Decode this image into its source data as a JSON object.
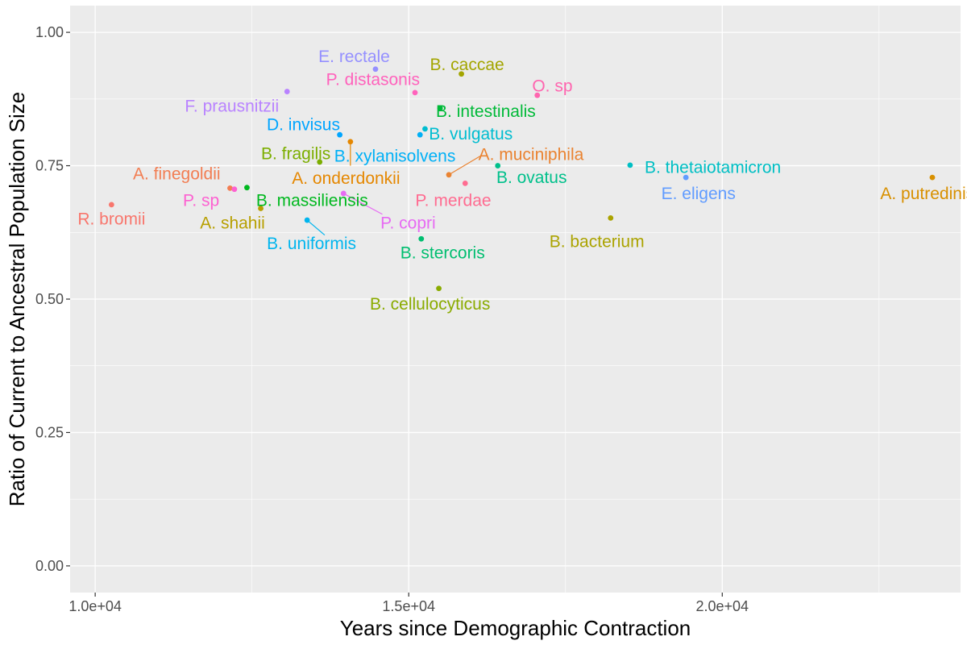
{
  "chart_data": {
    "type": "scatter",
    "title": "",
    "xlabel": "Years since Demographic Contraction",
    "ylabel": "Ratio of Current to Ancestral Population Size",
    "xlim": [
      9600,
      23800
    ],
    "ylim": [
      -0.05,
      1.05
    ],
    "x_ticks": [
      10000,
      15000,
      20000
    ],
    "x_tick_labels": [
      "1.0e+04",
      "1.5e+04",
      "2.0e+04"
    ],
    "y_ticks": [
      0,
      0.25,
      0.5,
      0.75,
      1.0
    ],
    "y_tick_labels": [
      "0.00",
      "0.25",
      "0.50",
      "0.75",
      "1.00"
    ],
    "grid": true,
    "legend": "none",
    "background": "#ebebeb",
    "points": [
      {
        "label": "R. bromii",
        "x": 10260,
        "y": 0.677,
        "color": "#F8766D"
      },
      {
        "label": "A. finegoldii",
        "x": 12150,
        "y": 0.708,
        "color": "#F27D52"
      },
      {
        "label": "P. sp",
        "x": 12220,
        "y": 0.706,
        "color": "#FD61D1"
      },
      {
        "label": "B. massiliensis",
        "x": 12420,
        "y": 0.709,
        "color": "#00B81F"
      },
      {
        "label": "A. shahii",
        "x": 12640,
        "y": 0.67,
        "color": "#B79F00"
      },
      {
        "label": "F. prausnitzii",
        "x": 13060,
        "y": 0.889,
        "color": "#B983FF"
      },
      {
        "label": "B. uniformis",
        "x": 13380,
        "y": 0.648,
        "color": "#00B5EE"
      },
      {
        "label": "B. fragilis",
        "x": 13580,
        "y": 0.757,
        "color": "#7CAE00"
      },
      {
        "label": "D. invisus",
        "x": 13900,
        "y": 0.808,
        "color": "#00A5FF"
      },
      {
        "label": "P. copri",
        "x": 13960,
        "y": 0.698,
        "color": "#E76BF3"
      },
      {
        "label": "A. onderdonkii",
        "x": 14070,
        "y": 0.795,
        "color": "#E58700"
      },
      {
        "label": "E. rectale",
        "x": 14470,
        "y": 0.931,
        "color": "#9590FF"
      },
      {
        "label": "P. distasonis",
        "x": 15100,
        "y": 0.887,
        "color": "#FF62BC"
      },
      {
        "label": "B. xylanisolvens",
        "x": 15180,
        "y": 0.808,
        "color": "#00B0F6"
      },
      {
        "label": "B. vulgatus",
        "x": 15260,
        "y": 0.819,
        "color": "#00BDD0"
      },
      {
        "label": "B. stercoris",
        "x": 15200,
        "y": 0.613,
        "color": "#00BE70"
      },
      {
        "label": "B. intestinalis",
        "x": 15500,
        "y": 0.858,
        "color": "#00BA38"
      },
      {
        "label": "B. cellulocyticus",
        "x": 15480,
        "y": 0.52,
        "color": "#8AAB00"
      },
      {
        "label": "A. muciniphila",
        "x": 15640,
        "y": 0.733,
        "color": "#EA8331"
      },
      {
        "label": "B. caccae",
        "x": 15840,
        "y": 0.922,
        "color": "#A3A500"
      },
      {
        "label": "P. merdae",
        "x": 15900,
        "y": 0.717,
        "color": "#FF6C91"
      },
      {
        "label": "B. ovatus",
        "x": 16420,
        "y": 0.75,
        "color": "#00C08B"
      },
      {
        "label": "O. sp",
        "x": 17050,
        "y": 0.882,
        "color": "#FF65AF"
      },
      {
        "label": "B. bacterium",
        "x": 18220,
        "y": 0.652,
        "color": "#ABA300"
      },
      {
        "label": "B. thetaiotamicron",
        "x": 18530,
        "y": 0.751,
        "color": "#00BFC4"
      },
      {
        "label": "E. eligens",
        "x": 19420,
        "y": 0.728,
        "color": "#619CFF"
      },
      {
        "label": "A. putredinis",
        "x": 23350,
        "y": 0.728,
        "color": "#D89000"
      }
    ],
    "labels": [
      {
        "text": "R. bromii",
        "x": 10260,
        "y": 0.65,
        "anchor": "middle",
        "color": "#F8766D"
      },
      {
        "text": "A. finegoldii",
        "x": 11300,
        "y": 0.735,
        "anchor": "middle",
        "color": "#F27D52"
      },
      {
        "text": "P. sp",
        "x": 11690,
        "y": 0.685,
        "anchor": "middle",
        "color": "#FD61D1"
      },
      {
        "text": "B. massiliensis",
        "x": 13460,
        "y": 0.685,
        "anchor": "middle",
        "color": "#00B81F"
      },
      {
        "text": "A. shahii",
        "x": 12190,
        "y": 0.643,
        "anchor": "middle",
        "color": "#B79F00"
      },
      {
        "text": "F. prausnitzii",
        "x": 12180,
        "y": 0.862,
        "anchor": "middle",
        "color": "#B983FF"
      },
      {
        "text": "B. uniformis",
        "x": 13450,
        "y": 0.604,
        "anchor": "middle",
        "color": "#00B5EE"
      },
      {
        "text": "B. fragilis",
        "x": 13200,
        "y": 0.773,
        "anchor": "middle",
        "color": "#7CAE00"
      },
      {
        "text": "D. invisus",
        "x": 13320,
        "y": 0.827,
        "anchor": "middle",
        "color": "#00A5FF"
      },
      {
        "text": "P. copri",
        "x": 14990,
        "y": 0.643,
        "anchor": "middle",
        "color": "#E76BF3"
      },
      {
        "text": "A. onderdonkii",
        "x": 14000,
        "y": 0.727,
        "anchor": "middle",
        "color": "#E58700"
      },
      {
        "text": "E. rectale",
        "x": 14130,
        "y": 0.955,
        "anchor": "middle",
        "color": "#9590FF"
      },
      {
        "text": "P. distasonis",
        "x": 14430,
        "y": 0.912,
        "anchor": "middle",
        "color": "#FF62BC"
      },
      {
        "text": "B. xylanisolvens",
        "x": 14780,
        "y": 0.768,
        "anchor": "middle",
        "color": "#00B0F6"
      },
      {
        "text": "B. vulgatus",
        "x": 15990,
        "y": 0.81,
        "anchor": "middle",
        "color": "#00BDD0"
      },
      {
        "text": "B. stercoris",
        "x": 15540,
        "y": 0.587,
        "anchor": "middle",
        "color": "#00BE70"
      },
      {
        "text": "B. intestinalis",
        "x": 16230,
        "y": 0.852,
        "anchor": "middle",
        "color": "#00BA38"
      },
      {
        "text": "B. cellulocyticus",
        "x": 15340,
        "y": 0.491,
        "anchor": "middle",
        "color": "#8AAB00"
      },
      {
        "text": "A. muciniphila",
        "x": 16950,
        "y": 0.771,
        "anchor": "middle",
        "color": "#EA8331"
      },
      {
        "text": "B. caccae",
        "x": 15930,
        "y": 0.94,
        "anchor": "middle",
        "color": "#A3A500"
      },
      {
        "text": "P. merdae",
        "x": 15710,
        "y": 0.685,
        "anchor": "middle",
        "color": "#FF6C91"
      },
      {
        "text": "B. ovatus",
        "x": 16960,
        "y": 0.728,
        "anchor": "middle",
        "color": "#00C08B"
      },
      {
        "text": "O. sp",
        "x": 17290,
        "y": 0.9,
        "anchor": "middle",
        "color": "#FF65AF"
      },
      {
        "text": "B. bacterium",
        "x": 18000,
        "y": 0.608,
        "anchor": "middle",
        "color": "#ABA300"
      },
      {
        "text": "B. thetaiotamicron",
        "x": 19850,
        "y": 0.747,
        "anchor": "middle",
        "color": "#00BFC4"
      },
      {
        "text": "E. eligens",
        "x": 19620,
        "y": 0.698,
        "anchor": "middle",
        "color": "#619CFF"
      },
      {
        "text": "A. putredinis",
        "x": 23270,
        "y": 0.698,
        "anchor": "middle",
        "color": "#D89000"
      }
    ],
    "connectors": [
      {
        "from": [
          13380,
          0.648
        ],
        "to": [
          13660,
          0.62
        ],
        "color": "#00B5EE"
      },
      {
        "from": [
          13960,
          0.698
        ],
        "to": [
          14580,
          0.659
        ],
        "color": "#E76BF3"
      },
      {
        "from": [
          14070,
          0.795
        ],
        "to": [
          14070,
          0.75
        ],
        "color": "#E58700"
      },
      {
        "from": [
          15640,
          0.733
        ],
        "to": [
          16140,
          0.768
        ],
        "color": "#EA8331"
      }
    ]
  }
}
